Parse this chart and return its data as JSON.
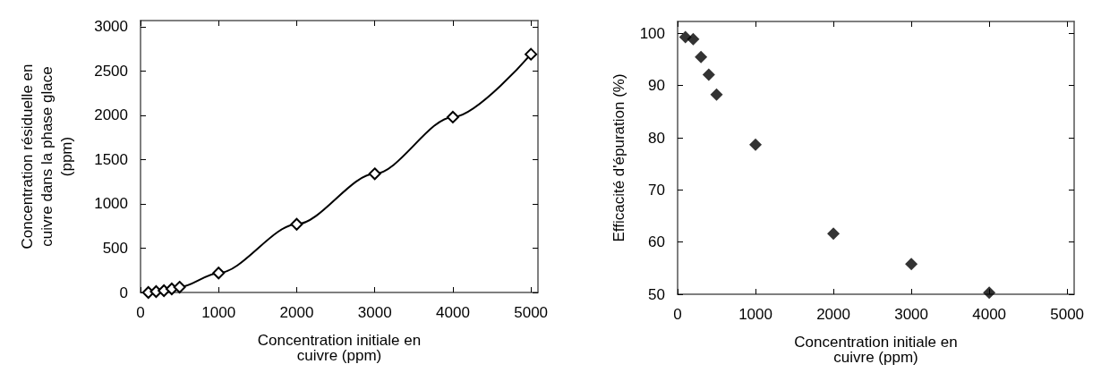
{
  "chart_data": [
    {
      "type": "line",
      "xlabel": "Concentration initiale en cuivre (ppm)",
      "ylabel": "Concentration résiduelle en cuivre dans la phase glace (ppm)",
      "x": [
        100,
        200,
        300,
        400,
        500,
        1000,
        2000,
        3000,
        4000,
        5000
      ],
      "series": [
        {
          "color": "#000000",
          "values": [
            0,
            10,
            20,
            40,
            60,
            220,
            770,
            1340,
            1980,
            2690
          ]
        }
      ],
      "xlim": [
        0,
        5090
      ],
      "xticks": [
        0,
        1000,
        2000,
        3000,
        4000,
        5000
      ],
      "ylim": [
        0,
        3070
      ],
      "yticks": [
        0,
        500,
        1000,
        1500,
        2000,
        2500,
        3000
      ],
      "marker": "diamond",
      "line_style": "solid",
      "grid": false
    },
    {
      "type": "scatter",
      "xlabel": "Concentration initiale en cuivre (ppm)",
      "ylabel": "Efficacité d'épuration (%)",
      "x": [
        100,
        200,
        300,
        400,
        500,
        1000,
        2000,
        3000,
        4000
      ],
      "series": [
        {
          "color": "#000000",
          "values": [
            99.3,
            98.9,
            95.5,
            92.1,
            88.3,
            78.7,
            61.6,
            55.8,
            50.3
          ]
        }
      ],
      "xlim": [
        0,
        5090
      ],
      "xticks": [
        0,
        1000,
        2000,
        3000,
        4000,
        5000
      ],
      "ylim": [
        50,
        102.3
      ],
      "yticks": [
        50,
        60,
        70,
        80,
        90,
        100
      ],
      "marker": "diamond",
      "grid": false
    }
  ]
}
